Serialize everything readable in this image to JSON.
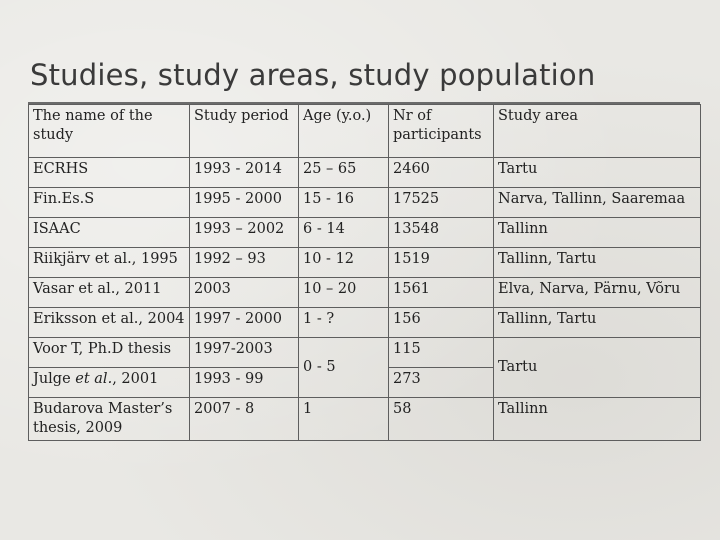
{
  "slide": {
    "title": "Studies, study areas, study population"
  },
  "table": {
    "headers": [
      "The name of the study",
      "Study period",
      "Age (y.o.)",
      "Nr of participants",
      "Study area"
    ],
    "rows": [
      {
        "name": "ECRHS",
        "period": "1993 - 2014",
        "age": "25 – 65",
        "n": "2460",
        "area": "Tartu"
      },
      {
        "name": "Fin.Es.S",
        "period": "1995 - 2000",
        "age": "15 - 16",
        "n": "17525",
        "area": "Narva, Tallinn, Saaremaa"
      },
      {
        "name": "ISAAC",
        "period": "1993 – 2002",
        "age": "6 - 14",
        "n": "13548",
        "area": "Tallinn"
      },
      {
        "name": "Riikjärv et al., 1995",
        "period": "1992 – 93",
        "age": "10 - 12",
        "n": "1519",
        "area": "Tallinn, Tartu"
      },
      {
        "name": "Vasar et al., 2011",
        "period": "2003",
        "age": "10 – 20",
        "n": "1561",
        "area": "Elva, Narva, Pärnu, Võru"
      },
      {
        "name": "Eriksson et al., 2004",
        "period": "1997 - 2000",
        "age": "1 - ?",
        "n": "156",
        "area": "Tallinn, Tartu"
      },
      {
        "name": "Voor T, Ph.D thesis",
        "period": "1997-2003",
        "age": "0 - 5",
        "n": "115",
        "area": "Tartu"
      },
      {
        "name_prefix": "Julge ",
        "name_italic": "et al.",
        "name_suffix": ", 2001",
        "period": "1993 - 99",
        "n": "273"
      },
      {
        "name": "Budarova Master’s thesis, 2009",
        "period": "2007 - 8",
        "age": "1",
        "n": "58",
        "area": "Tallinn"
      }
    ]
  }
}
